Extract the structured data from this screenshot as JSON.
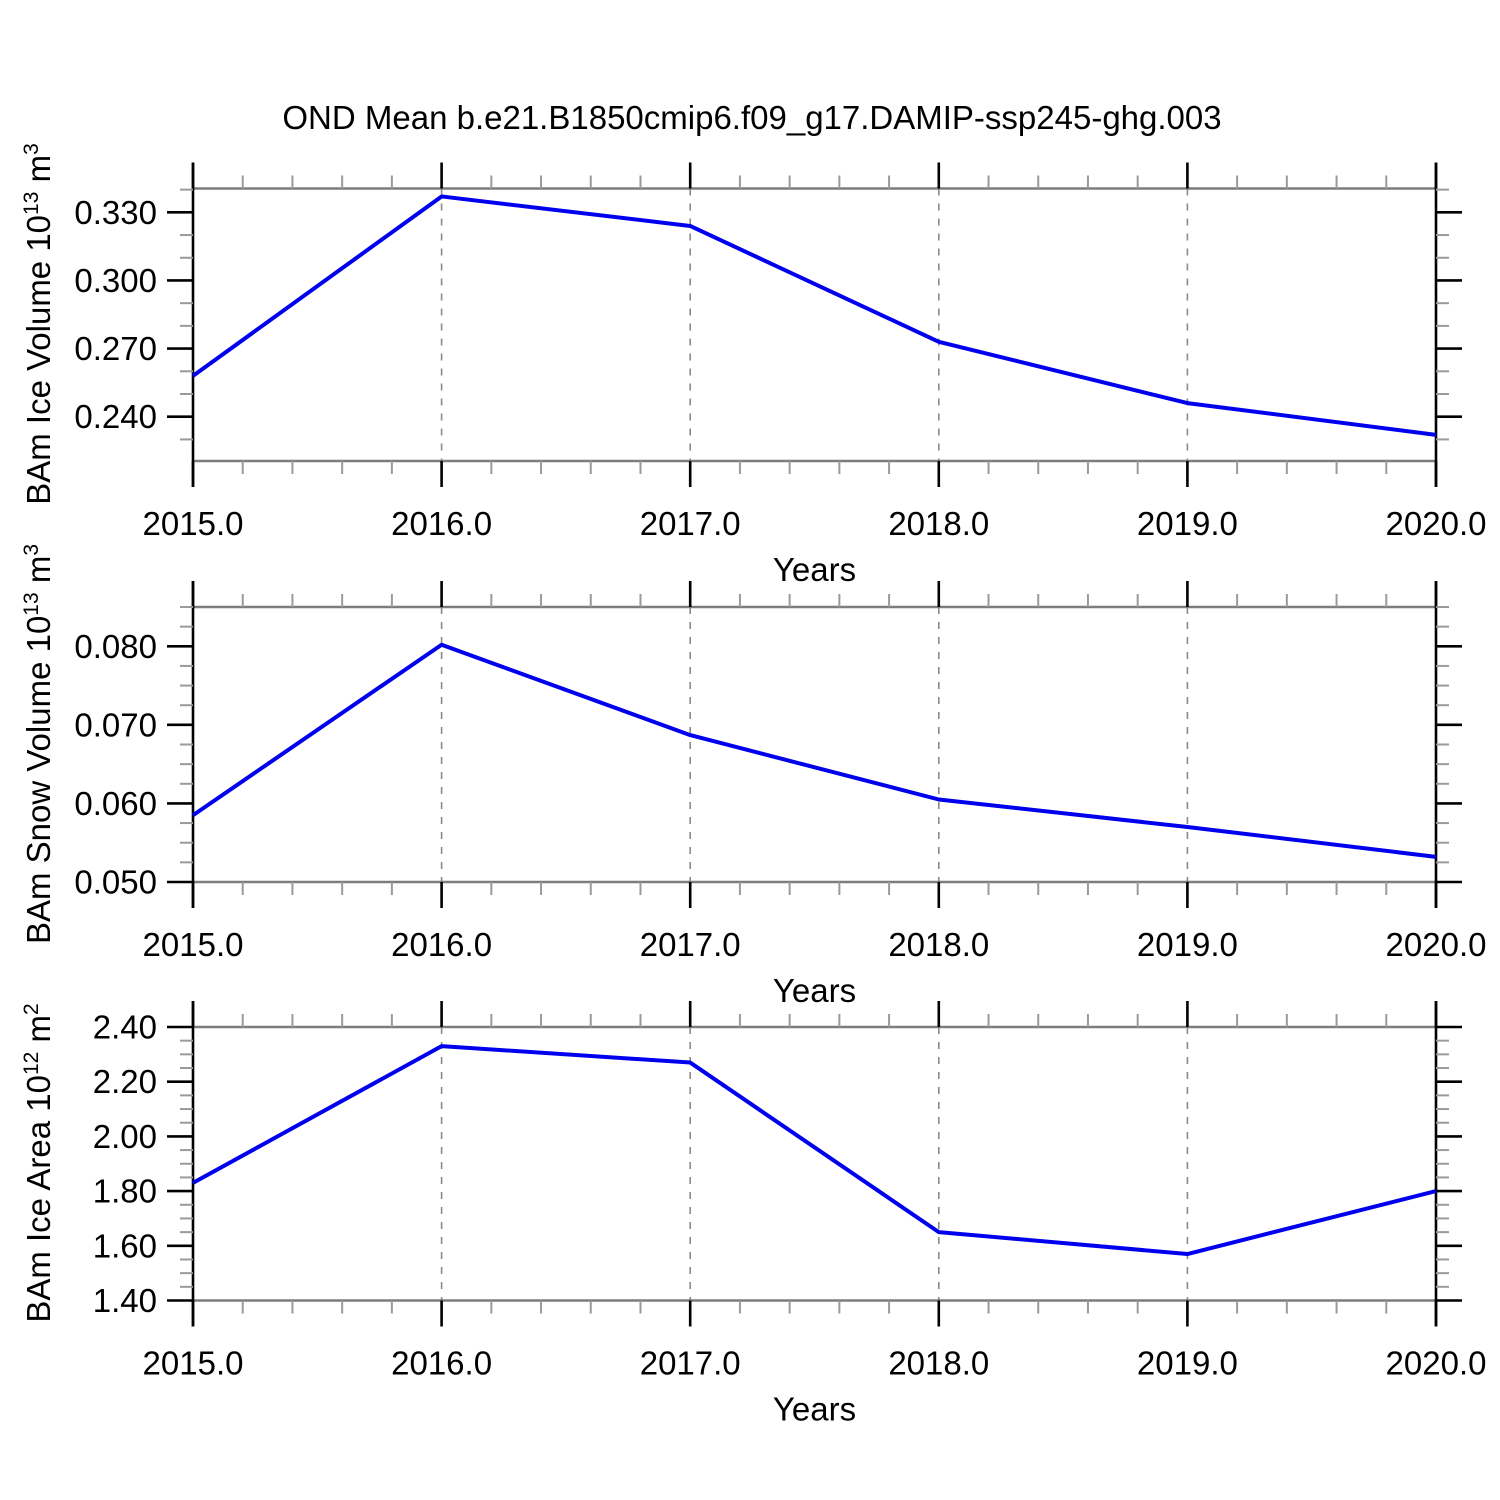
{
  "chart_data": {
    "type": "line",
    "title": "OND Mean b.e21.B1850cmip6.f09_g17.DAMIP-ssp245-ghg.003",
    "xlabel": "Years",
    "x": [
      2015,
      2016,
      2017,
      2018,
      2019,
      2020
    ],
    "x_tick_labels": [
      "2015.0",
      "2016.0",
      "2017.0",
      "2018.0",
      "2019.0",
      "2020.0"
    ],
    "xlim": [
      2015,
      2020
    ],
    "x_minor_step": 0.2,
    "gridlines_at_x": [
      2016,
      2017,
      2018,
      2019
    ],
    "legend": "none",
    "colors": {
      "line": "#0000ee",
      "grid": "#8a8a8a",
      "border_horizontal": "#7d7d7d",
      "axis_vertical": "#000000",
      "tick_major": "#000000",
      "tick_minor": "#9a9a9a",
      "text": "#000000",
      "background": "#ffffff"
    },
    "panels": [
      {
        "ylabel_plain": "BAm Ice Volume 10^13 m^3",
        "ylabel_parts": {
          "base": "BAm Ice Volume 10",
          "exp": "13",
          "unit_base": " m",
          "unit_exp": "3"
        },
        "ytick_labels": [
          "0.240",
          "0.270",
          "0.300",
          "0.330"
        ],
        "ytick_values": [
          0.24,
          0.27,
          0.3,
          0.33
        ],
        "y_minor_step": 0.01,
        "ylim": [
          0.2205,
          0.3405
        ],
        "values": [
          0.258,
          0.337,
          0.324,
          0.273,
          0.246,
          0.232
        ]
      },
      {
        "ylabel_plain": "BAm Snow Volume 10^13 m^3",
        "ylabel_parts": {
          "base": "BAm Snow Volume 10",
          "exp": "13",
          "unit_base": " m",
          "unit_exp": "3"
        },
        "ytick_labels": [
          "0.050",
          "0.060",
          "0.070",
          "0.080"
        ],
        "ytick_values": [
          0.05,
          0.06,
          0.07,
          0.08
        ],
        "y_minor_step": 0.0025,
        "ylim": [
          0.05,
          0.085
        ],
        "values": [
          0.0585,
          0.0802,
          0.0687,
          0.0605,
          0.057,
          0.0532
        ]
      },
      {
        "ylabel_plain": "BAm Ice Area 10^12 m^2",
        "ylabel_parts": {
          "base": "BAm Ice Area 10",
          "exp": "12",
          "unit_base": " m",
          "unit_exp": "2"
        },
        "ytick_labels": [
          "1.40",
          "1.60",
          "1.80",
          "2.00",
          "2.20",
          "2.40"
        ],
        "ytick_values": [
          1.4,
          1.6,
          1.8,
          2.0,
          2.2,
          2.4
        ],
        "y_minor_step": 0.05,
        "ylim": [
          1.4,
          2.4
        ],
        "values": [
          1.83,
          2.33,
          2.27,
          1.65,
          1.57,
          1.8
        ]
      }
    ]
  }
}
